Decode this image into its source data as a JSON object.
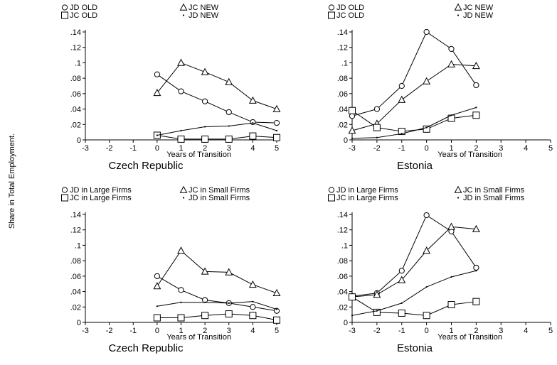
{
  "figure": {
    "ylabel": "Share in Total Employment."
  },
  "chart_data": [
    {
      "type": "line",
      "title": "Czech Republic",
      "xlabel": "Years of Transition",
      "ylabel": "",
      "xlim": [
        -3,
        5
      ],
      "ylim": [
        0,
        0.14
      ],
      "xticks": [
        -3,
        -2,
        -1,
        0,
        1,
        2,
        3,
        4,
        5
      ],
      "xtick_labels": [
        "-3",
        "-2",
        "-1",
        "0",
        "1",
        "2",
        "3",
        "4",
        "5"
      ],
      "yticks": [
        0,
        0.02,
        0.04,
        0.06,
        0.08,
        0.1,
        0.12,
        0.14
      ],
      "ytick_labels": [
        "0",
        ".02",
        ".04",
        ".06",
        ".08",
        ".1",
        ".12",
        ".14"
      ],
      "grid": false,
      "legend_position": "top",
      "series": [
        {
          "name": "JD OLD",
          "marker": "circle",
          "x": [
            0,
            1,
            2,
            3,
            4,
            5
          ],
          "y": [
            0.085,
            0.063,
            0.05,
            0.036,
            0.023,
            0.022
          ]
        },
        {
          "name": "JC NEW",
          "marker": "triangle",
          "x": [
            0,
            1,
            2,
            3,
            4,
            5
          ],
          "y": [
            0.061,
            0.1,
            0.088,
            0.075,
            0.051,
            0.04
          ]
        },
        {
          "name": "JC OLD",
          "marker": "square",
          "x": [
            0,
            1,
            2,
            3,
            4,
            5
          ],
          "y": [
            0.006,
            0.001,
            0.001,
            0.001,
            0.005,
            0.003
          ]
        },
        {
          "name": "JD NEW",
          "marker": "dot",
          "x": [
            0,
            1,
            2,
            3,
            4,
            5
          ],
          "y": [
            0.006,
            0.012,
            0.017,
            0.018,
            0.022,
            0.012
          ]
        }
      ]
    },
    {
      "type": "line",
      "title": "Estonia",
      "xlabel": "Years of Transition",
      "ylabel": "",
      "xlim": [
        -3,
        5
      ],
      "ylim": [
        0,
        0.14
      ],
      "xticks": [
        -3,
        -2,
        -1,
        0,
        1,
        2,
        3,
        4,
        5
      ],
      "xtick_labels": [
        "-3",
        "-2",
        "-1",
        "0",
        "1",
        "2",
        "3",
        "4",
        "5"
      ],
      "yticks": [
        0,
        0.02,
        0.04,
        0.06,
        0.08,
        0.1,
        0.12,
        0.14
      ],
      "ytick_labels": [
        "0",
        ".02",
        ".04",
        ".06",
        ".08",
        ".1",
        ".12",
        ".14"
      ],
      "grid": false,
      "legend_position": "top",
      "series": [
        {
          "name": "JD OLD",
          "marker": "circle",
          "x": [
            -3,
            -2,
            -1,
            0,
            1,
            2
          ],
          "y": [
            0.031,
            0.04,
            0.07,
            0.14,
            0.118,
            0.071
          ]
        },
        {
          "name": "JC NEW",
          "marker": "triangle",
          "x": [
            -3,
            -2,
            -1,
            0,
            1,
            2
          ],
          "y": [
            0.012,
            0.021,
            0.052,
            0.076,
            0.098,
            0.096
          ]
        },
        {
          "name": "JC OLD",
          "marker": "square",
          "x": [
            -3,
            -2,
            -1,
            0,
            1,
            2
          ],
          "y": [
            0.038,
            0.016,
            0.011,
            0.014,
            0.028,
            0.032
          ]
        },
        {
          "name": "JD NEW",
          "marker": "dot",
          "x": [
            -3,
            -2,
            -1,
            0,
            1,
            2
          ],
          "y": [
            0.002,
            0.003,
            0.008,
            0.016,
            0.032,
            0.042
          ]
        }
      ]
    },
    {
      "type": "line",
      "title": "Czech Republic",
      "xlabel": "Years of Transition",
      "ylabel": "",
      "xlim": [
        -3,
        5
      ],
      "ylim": [
        0,
        0.14
      ],
      "xticks": [
        -3,
        -2,
        -1,
        0,
        1,
        2,
        3,
        4,
        5
      ],
      "xtick_labels": [
        "-3",
        "-2",
        "-1",
        "0",
        "1",
        "2",
        "3",
        "4",
        "5"
      ],
      "yticks": [
        0,
        0.02,
        0.04,
        0.06,
        0.08,
        0.1,
        0.12,
        0.14
      ],
      "ytick_labels": [
        "0",
        ".02",
        ".04",
        ".06",
        ".08",
        ".1",
        ".12",
        ".14"
      ],
      "grid": false,
      "legend_position": "top",
      "series": [
        {
          "name": "JD in Large Firms",
          "marker": "circle",
          "x": [
            0,
            1,
            2,
            3,
            4,
            5
          ],
          "y": [
            0.06,
            0.042,
            0.029,
            0.025,
            0.02,
            0.015
          ]
        },
        {
          "name": "JC in Small Firms",
          "marker": "triangle",
          "x": [
            0,
            1,
            2,
            3,
            4,
            5
          ],
          "y": [
            0.047,
            0.093,
            0.066,
            0.065,
            0.049,
            0.038
          ]
        },
        {
          "name": "JC in Large Firms",
          "marker": "square",
          "x": [
            0,
            1,
            2,
            3,
            4,
            5
          ],
          "y": [
            0.006,
            0.006,
            0.009,
            0.011,
            0.009,
            0.003
          ]
        },
        {
          "name": "JD in Small Firms",
          "marker": "dot",
          "x": [
            0,
            1,
            2,
            3,
            4,
            5
          ],
          "y": [
            0.021,
            0.026,
            0.026,
            0.025,
            0.027,
            0.017
          ]
        }
      ]
    },
    {
      "type": "line",
      "title": "Estonia",
      "xlabel": "Years of Transition",
      "ylabel": "",
      "xlim": [
        -3,
        5
      ],
      "ylim": [
        0,
        0.14
      ],
      "xticks": [
        -3,
        -2,
        -1,
        0,
        1,
        2,
        3,
        4,
        5
      ],
      "xtick_labels": [
        "-3",
        "-2",
        "-1",
        "0",
        "1",
        "2",
        "3",
        "4",
        "5"
      ],
      "yticks": [
        0,
        0.02,
        0.04,
        0.06,
        0.08,
        0.1,
        0.12,
        0.14
      ],
      "ytick_labels": [
        "0",
        ".02",
        ".04",
        ".06",
        ".08",
        ".1",
        ".12",
        ".14"
      ],
      "grid": false,
      "legend_position": "top",
      "series": [
        {
          "name": "JD in Large Firms",
          "marker": "circle",
          "x": [
            -3,
            -2,
            -1,
            0,
            1,
            2
          ],
          "y": [
            0.034,
            0.038,
            0.067,
            0.139,
            0.118,
            0.071
          ]
        },
        {
          "name": "JC in Small Firms",
          "marker": "triangle",
          "x": [
            -3,
            -2,
            -1,
            0,
            1,
            2
          ],
          "y": [
            0.033,
            0.036,
            0.055,
            0.093,
            0.124,
            0.121
          ]
        },
        {
          "name": "JC in Large Firms",
          "marker": "square",
          "x": [
            -3,
            -2,
            -1,
            0,
            1,
            2
          ],
          "y": [
            0.033,
            0.013,
            0.012,
            0.009,
            0.023,
            0.027
          ]
        },
        {
          "name": "JD in Small Firms",
          "marker": "dot",
          "x": [
            -3,
            -2,
            -1,
            0,
            1,
            2
          ],
          "y": [
            0.009,
            0.015,
            0.025,
            0.046,
            0.059,
            0.067
          ]
        }
      ]
    }
  ]
}
